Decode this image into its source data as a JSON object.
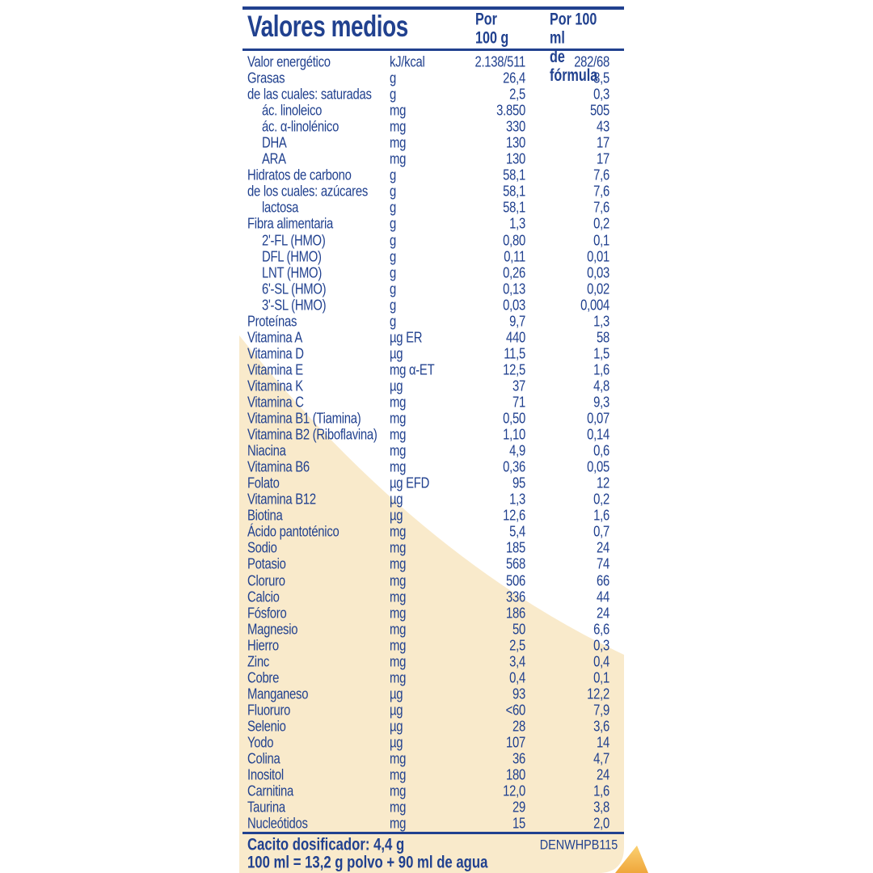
{
  "colors": {
    "text_blue": "#21418F",
    "cream_background": "#F9EACB",
    "fold_gold_light": "#FBD172",
    "fold_gold_dark": "#EFA63B"
  },
  "header": {
    "title": "Valores medios",
    "col_per_100g": "Por\n100 g",
    "col_per_100ml": "Por 100 ml\nde fórmula"
  },
  "table": {
    "rows": [
      {
        "name": "Valor energético",
        "unit": "kJ/kcal",
        "per_100g": "2.138/511",
        "per_100ml": "282/68",
        "indent": false
      },
      {
        "name": "Grasas",
        "unit": "g",
        "per_100g": "26,4",
        "per_100ml": "3,5",
        "indent": false
      },
      {
        "name": "de las cuales: saturadas",
        "unit": "g",
        "per_100g": "2,5",
        "per_100ml": "0,3",
        "indent": false
      },
      {
        "name": "ác. linoleico",
        "unit": "mg",
        "per_100g": "3.850",
        "per_100ml": "505",
        "indent": true
      },
      {
        "name": "ác. α-linolénico",
        "unit": "mg",
        "per_100g": "330",
        "per_100ml": "43",
        "indent": true
      },
      {
        "name": "DHA",
        "unit": "mg",
        "per_100g": "130",
        "per_100ml": "17",
        "indent": true
      },
      {
        "name": "ARA",
        "unit": "mg",
        "per_100g": "130",
        "per_100ml": "17",
        "indent": true
      },
      {
        "name": "Hidratos de carbono",
        "unit": "g",
        "per_100g": "58,1",
        "per_100ml": "7,6",
        "indent": false
      },
      {
        "name": "de los cuales: azúcares",
        "unit": "g",
        "per_100g": "58,1",
        "per_100ml": "7,6",
        "indent": false
      },
      {
        "name": "lactosa",
        "unit": "g",
        "per_100g": "58,1",
        "per_100ml": "7,6",
        "indent": true
      },
      {
        "name": "Fibra alimentaria",
        "unit": "g",
        "per_100g": "1,3",
        "per_100ml": "0,2",
        "indent": false
      },
      {
        "name": "2'-FL (HMO)",
        "unit": "g",
        "per_100g": "0,80",
        "per_100ml": "0,1",
        "indent": true
      },
      {
        "name": "DFL (HMO)",
        "unit": "g",
        "per_100g": "0,11",
        "per_100ml": "0,01",
        "indent": true
      },
      {
        "name": "LNT (HMO)",
        "unit": "g",
        "per_100g": "0,26",
        "per_100ml": "0,03",
        "indent": true
      },
      {
        "name": "6'-SL (HMO)",
        "unit": "g",
        "per_100g": "0,13",
        "per_100ml": "0,02",
        "indent": true
      },
      {
        "name": "3'-SL (HMO)",
        "unit": "g",
        "per_100g": "0,03",
        "per_100ml": "0,004",
        "indent": true
      },
      {
        "name": "Proteínas",
        "unit": "g",
        "per_100g": "9,7",
        "per_100ml": "1,3",
        "indent": false
      },
      {
        "name": "Vitamina A",
        "unit": "µg ER",
        "per_100g": "440",
        "per_100ml": "58",
        "indent": false
      },
      {
        "name": "Vitamina D",
        "unit": "µg",
        "per_100g": "11,5",
        "per_100ml": "1,5",
        "indent": false
      },
      {
        "name": "Vitamina E",
        "unit": "mg α-ET",
        "per_100g": "12,5",
        "per_100ml": "1,6",
        "indent": false
      },
      {
        "name": "Vitamina K",
        "unit": "µg",
        "per_100g": "37",
        "per_100ml": "4,8",
        "indent": false
      },
      {
        "name": "Vitamina C",
        "unit": "mg",
        "per_100g": "71",
        "per_100ml": "9,3",
        "indent": false
      },
      {
        "name": "Vitamina B1 (Tiamina)",
        "unit": "mg",
        "per_100g": "0,50",
        "per_100ml": "0,07",
        "indent": false
      },
      {
        "name": "Vitamina B2 (Riboflavina)",
        "unit": "mg",
        "per_100g": "1,10",
        "per_100ml": "0,14",
        "indent": false
      },
      {
        "name": "Niacina",
        "unit": "mg",
        "per_100g": "4,9",
        "per_100ml": "0,6",
        "indent": false
      },
      {
        "name": "Vitamina B6",
        "unit": "mg",
        "per_100g": "0,36",
        "per_100ml": "0,05",
        "indent": false
      },
      {
        "name": "Folato",
        "unit": "µg EFD",
        "per_100g": "95",
        "per_100ml": "12",
        "indent": false
      },
      {
        "name": "Vitamina B12",
        "unit": "µg",
        "per_100g": "1,3",
        "per_100ml": "0,2",
        "indent": false
      },
      {
        "name": "Biotina",
        "unit": "µg",
        "per_100g": "12,6",
        "per_100ml": "1,6",
        "indent": false
      },
      {
        "name": "Ácido pantoténico",
        "unit": "mg",
        "per_100g": "5,4",
        "per_100ml": "0,7",
        "indent": false
      },
      {
        "name": "Sodio",
        "unit": "mg",
        "per_100g": "185",
        "per_100ml": "24",
        "indent": false
      },
      {
        "name": "Potasio",
        "unit": "mg",
        "per_100g": "568",
        "per_100ml": "74",
        "indent": false
      },
      {
        "name": "Cloruro",
        "unit": "mg",
        "per_100g": "506",
        "per_100ml": "66",
        "indent": false
      },
      {
        "name": "Calcio",
        "unit": "mg",
        "per_100g": "336",
        "per_100ml": "44",
        "indent": false
      },
      {
        "name": "Fósforo",
        "unit": "mg",
        "per_100g": "186",
        "per_100ml": "24",
        "indent": false
      },
      {
        "name": "Magnesio",
        "unit": "mg",
        "per_100g": "50",
        "per_100ml": "6,6",
        "indent": false
      },
      {
        "name": "Hierro",
        "unit": "mg",
        "per_100g": "2,5",
        "per_100ml": "0,3",
        "indent": false
      },
      {
        "name": "Zinc",
        "unit": "mg",
        "per_100g": "3,4",
        "per_100ml": "0,4",
        "indent": false
      },
      {
        "name": "Cobre",
        "unit": "mg",
        "per_100g": "0,4",
        "per_100ml": "0,1",
        "indent": false
      },
      {
        "name": "Manganeso",
        "unit": "µg",
        "per_100g": "93",
        "per_100ml": "12,2",
        "indent": false
      },
      {
        "name": "Fluoruro",
        "unit": "µg",
        "per_100g": "<60",
        "per_100ml": "7,9",
        "indent": false
      },
      {
        "name": "Selenio",
        "unit": "µg",
        "per_100g": "28",
        "per_100ml": "3,6",
        "indent": false
      },
      {
        "name": "Yodo",
        "unit": "µg",
        "per_100g": "107",
        "per_100ml": "14",
        "indent": false
      },
      {
        "name": "Colina",
        "unit": "mg",
        "per_100g": "36",
        "per_100ml": "4,7",
        "indent": false
      },
      {
        "name": "Inositol",
        "unit": "mg",
        "per_100g": "180",
        "per_100ml": "24",
        "indent": false
      },
      {
        "name": "Carnitina",
        "unit": "mg",
        "per_100g": "12,0",
        "per_100ml": "1,6",
        "indent": false
      },
      {
        "name": "Taurina",
        "unit": "mg",
        "per_100g": "29",
        "per_100ml": "3,8",
        "indent": false
      },
      {
        "name": "Nucleótidos",
        "unit": "mg",
        "per_100g": "15",
        "per_100ml": "2,0",
        "indent": false
      }
    ]
  },
  "footer": {
    "scoop_info": "Cacito dosificador: 4,4 g",
    "product_code": "DENWHPB115",
    "preparation": "100 ml = 13,2 g polvo + 90 ml de agua"
  }
}
